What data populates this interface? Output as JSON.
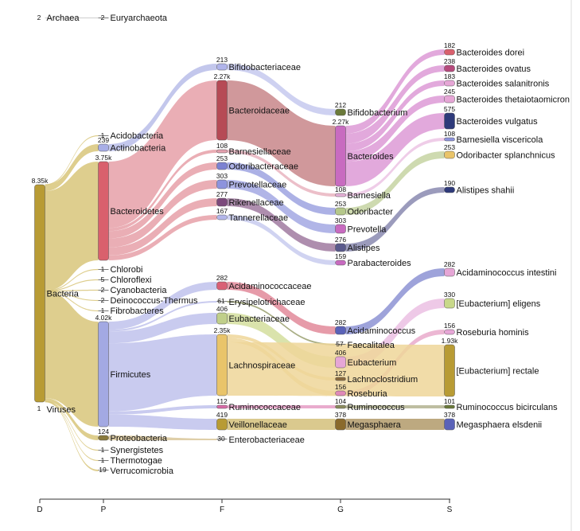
{
  "chart_data": {
    "type": "sankey",
    "levels": [
      "D",
      "P",
      "F",
      "G",
      "S"
    ],
    "nodes": [
      {
        "id": "archaea",
        "name": "Archaea",
        "count": "2",
        "level": 0,
        "color": "#aaaaaa"
      },
      {
        "id": "bacteria",
        "name": "Bacteria",
        "count": "8.35k",
        "level": 0,
        "color": "#b89b34"
      },
      {
        "id": "viruses",
        "name": "Viruses",
        "count": "1",
        "level": 0,
        "color": "#b89b34"
      },
      {
        "id": "euryarchaeota",
        "name": "Euryarchaeota",
        "count": "2",
        "level": 1,
        "color": "#aaaaaa"
      },
      {
        "id": "acidobacteria",
        "name": "Acidobacteria",
        "count": "1",
        "level": 1,
        "color": "#b89b34"
      },
      {
        "id": "actinobacteria",
        "name": "Actinobacteria",
        "count": "239",
        "level": 1,
        "color": "#a8aee6"
      },
      {
        "id": "bacteroidetes",
        "name": "Bacteroidetes",
        "count": "3.75k",
        "level": 1,
        "color": "#d9606d"
      },
      {
        "id": "chlorobi",
        "name": "Chlorobi",
        "count": "1",
        "level": 1,
        "color": "#b89b34"
      },
      {
        "id": "chloroflexi",
        "name": "Chloroflexi",
        "count": "5",
        "level": 1,
        "color": "#b89b34"
      },
      {
        "id": "cyanobacteria",
        "name": "Cyanobacteria",
        "count": "2",
        "level": 1,
        "color": "#b89b34"
      },
      {
        "id": "deinococcus",
        "name": "Deinococcus-Thermus",
        "count": "2",
        "level": 1,
        "color": "#b89b34"
      },
      {
        "id": "fibrobacteres",
        "name": "Fibrobacteres",
        "count": "1",
        "level": 1,
        "color": "#b89b34"
      },
      {
        "id": "firmicutes",
        "name": "Firmicutes",
        "count": "4.02k",
        "level": 1,
        "color": "#a3a9e3"
      },
      {
        "id": "proteobacteria",
        "name": "Proteobacteria",
        "count": "124",
        "level": 1,
        "color": "#8a7a3c"
      },
      {
        "id": "synergistetes",
        "name": "Synergistetes",
        "count": "1",
        "level": 1,
        "color": "#b89b34"
      },
      {
        "id": "thermotogae",
        "name": "Thermotogae",
        "count": "1",
        "level": 1,
        "color": "#b89b34"
      },
      {
        "id": "verrucomicrobia",
        "name": "Verrucomicrobia",
        "count": "19",
        "level": 1,
        "color": "#b89b34"
      },
      {
        "id": "bifidobacteriaceae",
        "name": "Bifidobacteriaceae",
        "count": "213",
        "level": 2,
        "color": "#b0b4ea"
      },
      {
        "id": "bacteroidaceae",
        "name": "Bacteroidaceae",
        "count": "2.27k",
        "level": 2,
        "color": "#b64a55"
      },
      {
        "id": "barnesiellaceae",
        "name": "Barnesiellaceae",
        "count": "108",
        "level": 2,
        "color": "#e4a0ae"
      },
      {
        "id": "odoribacteraceae",
        "name": "Odoribacteraceae",
        "count": "253",
        "level": 2,
        "color": "#7c82d2"
      },
      {
        "id": "prevotellaceae",
        "name": "Prevotellaceae",
        "count": "303",
        "level": 2,
        "color": "#8d93dd"
      },
      {
        "id": "rikenellaceae",
        "name": "Rikenellaceae",
        "count": "277",
        "level": 2,
        "color": "#7c4a7c"
      },
      {
        "id": "tannerellaceae",
        "name": "Tannerellaceae",
        "count": "167",
        "level": 2,
        "color": "#b3b6ea"
      },
      {
        "id": "acidaminococcaceae",
        "name": "Acidaminococcaceae",
        "count": "282",
        "level": 2,
        "color": "#d96075"
      },
      {
        "id": "erysipelotrichaceae",
        "name": "Erysipelotrichaceae",
        "count": "61",
        "level": 2,
        "color": "#6f7a3c"
      },
      {
        "id": "eubacteriaceae",
        "name": "Eubacteriaceae",
        "count": "406",
        "level": 2,
        "color": "#c0cf8a"
      },
      {
        "id": "lachnospiraceae",
        "name": "Lachnospiraceae",
        "count": "2.35k",
        "level": 2,
        "color": "#e9c46a"
      },
      {
        "id": "ruminococcaceae",
        "name": "Ruminococcaceae",
        "count": "112",
        "level": 2,
        "color": "#d96aa8"
      },
      {
        "id": "veillonellaceae",
        "name": "Veillonellaceae",
        "count": "419",
        "level": 2,
        "color": "#b89b34"
      },
      {
        "id": "enterobacteriaceae",
        "name": "Enterobacteriaceae",
        "count": "30",
        "level": 2,
        "color": "#e4a0ae"
      },
      {
        "id": "bifidobacterium",
        "name": "Bifidobacterium",
        "count": "212",
        "level": 3,
        "color": "#6b7a3a"
      },
      {
        "id": "bacteroides",
        "name": "Bacteroides",
        "count": "2.27k",
        "level": 3,
        "color": "#c86bc0"
      },
      {
        "id": "barnesiella",
        "name": "Barnesiella",
        "count": "108",
        "level": 3,
        "color": "#e6b0d8"
      },
      {
        "id": "odoribacter",
        "name": "Odoribacter",
        "count": "253",
        "level": 3,
        "color": "#b5c88a"
      },
      {
        "id": "prevotella",
        "name": "Prevotella",
        "count": "303",
        "level": 3,
        "color": "#c86bc0"
      },
      {
        "id": "alistipes",
        "name": "Alistipes",
        "count": "276",
        "level": 3,
        "color": "#5a5a8c"
      },
      {
        "id": "parabacteroides",
        "name": "Parabacteroides",
        "count": "159",
        "level": 3,
        "color": "#c86bc0"
      },
      {
        "id": "acidaminococcus",
        "name": "Acidaminococcus",
        "count": "282",
        "level": 3,
        "color": "#5a62b8"
      },
      {
        "id": "faecalitalea",
        "name": "Faecalitalea",
        "count": "57",
        "level": 3,
        "color": "#8a7a3c"
      },
      {
        "id": "eubacterium",
        "name": "Eubacterium",
        "count": "406",
        "level": 3,
        "color": "#e6a6d6"
      },
      {
        "id": "lachnoclostridium",
        "name": "Lachnoclostridium",
        "count": "127",
        "level": 3,
        "color": "#8a6a3c"
      },
      {
        "id": "roseburia",
        "name": "Roseburia",
        "count": "156",
        "level": 3,
        "color": "#e08ab8"
      },
      {
        "id": "ruminococcus",
        "name": "Ruminococcus",
        "count": "104",
        "level": 3,
        "color": "#8a8a5c"
      },
      {
        "id": "megasphaera",
        "name": "Megasphaera",
        "count": "378",
        "level": 3,
        "color": "#8a6a2c"
      },
      {
        "id": "b_dorei",
        "name": "Bacteroides dorei",
        "count": "182",
        "level": 4,
        "color": "#d9606d"
      },
      {
        "id": "b_ovatus",
        "name": "Bacteroides ovatus",
        "count": "238",
        "level": 4,
        "color": "#b64a7c"
      },
      {
        "id": "b_salanitronis",
        "name": "Bacteroides salanitronis",
        "count": "183",
        "level": 4,
        "color": "#e6a6d6"
      },
      {
        "id": "b_thetaiotaomicron",
        "name": "Bacteroides thetaiotaomicron",
        "count": "245",
        "level": 4,
        "color": "#e6a6d6"
      },
      {
        "id": "b_vulgatus",
        "name": "Bacteroides vulgatus",
        "count": "575",
        "level": 4,
        "color": "#2e3a7a"
      },
      {
        "id": "barn_viscericola",
        "name": "Barnesiella viscericola",
        "count": "108",
        "level": 4,
        "color": "#8d93dd"
      },
      {
        "id": "odo_splanchnicus",
        "name": "Odoribacter splanchnicus",
        "count": "253",
        "level": 4,
        "color": "#e9c46a"
      },
      {
        "id": "ali_shahii",
        "name": "Alistipes shahii",
        "count": "190",
        "level": 4,
        "color": "#2e3a7a"
      },
      {
        "id": "acid_intestini",
        "name": "Acidaminococcus intestini",
        "count": "282",
        "level": 4,
        "color": "#e6a6d6"
      },
      {
        "id": "eub_eligens",
        "name": "[Eubacterium] eligens",
        "count": "330",
        "level": 4,
        "color": "#c8d88a"
      },
      {
        "id": "ros_hominis",
        "name": "Roseburia hominis",
        "count": "156",
        "level": 4,
        "color": "#e6a6d6"
      },
      {
        "id": "eub_rectale",
        "name": "[Eubacterium] rectale",
        "count": "1.93k",
        "level": 4,
        "color": "#b89b34"
      },
      {
        "id": "rum_bicirculans",
        "name": "Ruminococcus bicirculans",
        "count": "101",
        "level": 4,
        "color": "#6b7a3a"
      },
      {
        "id": "meg_elsdenii",
        "name": "Megasphaera elsdenii",
        "count": "378",
        "level": 4,
        "color": "#5a62b8"
      }
    ],
    "links": [
      {
        "source": "archaea",
        "target": "euryarchaeota",
        "value": 2
      },
      {
        "source": "bacteria",
        "target": "acidobacteria",
        "value": 1
      },
      {
        "source": "bacteria",
        "target": "actinobacteria",
        "value": 239
      },
      {
        "source": "bacteria",
        "target": "bacteroidetes",
        "value": 3750
      },
      {
        "source": "bacteria",
        "target": "chlorobi",
        "value": 1
      },
      {
        "source": "bacteria",
        "target": "chloroflexi",
        "value": 5
      },
      {
        "source": "bacteria",
        "target": "cyanobacteria",
        "value": 2
      },
      {
        "source": "bacteria",
        "target": "deinococcus",
        "value": 2
      },
      {
        "source": "bacteria",
        "target": "fibrobacteres",
        "value": 1
      },
      {
        "source": "bacteria",
        "target": "firmicutes",
        "value": 4020
      },
      {
        "source": "bacteria",
        "target": "proteobacteria",
        "value": 124
      },
      {
        "source": "bacteria",
        "target": "synergistetes",
        "value": 1
      },
      {
        "source": "bacteria",
        "target": "thermotogae",
        "value": 1
      },
      {
        "source": "bacteria",
        "target": "verrucomicrobia",
        "value": 19
      },
      {
        "source": "actinobacteria",
        "target": "bifidobacteriaceae",
        "value": 213
      },
      {
        "source": "bacteroidetes",
        "target": "bacteroidaceae",
        "value": 2270
      },
      {
        "source": "bacteroidetes",
        "target": "barnesiellaceae",
        "value": 108
      },
      {
        "source": "bacteroidetes",
        "target": "odoribacteraceae",
        "value": 253
      },
      {
        "source": "bacteroidetes",
        "target": "prevotellaceae",
        "value": 303
      },
      {
        "source": "bacteroidetes",
        "target": "rikenellaceae",
        "value": 277
      },
      {
        "source": "bacteroidetes",
        "target": "tannerellaceae",
        "value": 167
      },
      {
        "source": "firmicutes",
        "target": "acidaminococcaceae",
        "value": 282
      },
      {
        "source": "firmicutes",
        "target": "erysipelotrichaceae",
        "value": 61
      },
      {
        "source": "firmicutes",
        "target": "eubacteriaceae",
        "value": 406
      },
      {
        "source": "firmicutes",
        "target": "lachnospiraceae",
        "value": 2350
      },
      {
        "source": "firmicutes",
        "target": "ruminococcaceae",
        "value": 112
      },
      {
        "source": "firmicutes",
        "target": "veillonellaceae",
        "value": 419
      },
      {
        "source": "proteobacteria",
        "target": "enterobacteriaceae",
        "value": 30
      },
      {
        "source": "bifidobacteriaceae",
        "target": "bifidobacterium",
        "value": 212
      },
      {
        "source": "bacteroidaceae",
        "target": "bacteroides",
        "value": 2270
      },
      {
        "source": "barnesiellaceae",
        "target": "barnesiella",
        "value": 108
      },
      {
        "source": "odoribacteraceae",
        "target": "odoribacter",
        "value": 253
      },
      {
        "source": "prevotellaceae",
        "target": "prevotella",
        "value": 303
      },
      {
        "source": "rikenellaceae",
        "target": "alistipes",
        "value": 276
      },
      {
        "source": "tannerellaceae",
        "target": "parabacteroides",
        "value": 159
      },
      {
        "source": "acidaminococcaceae",
        "target": "acidaminococcus",
        "value": 282
      },
      {
        "source": "erysipelotrichaceae",
        "target": "faecalitalea",
        "value": 57
      },
      {
        "source": "eubacteriaceae",
        "target": "eubacterium",
        "value": 406
      },
      {
        "source": "lachnospiraceae",
        "target": "lachnoclostridium",
        "value": 127
      },
      {
        "source": "lachnospiraceae",
        "target": "roseburia",
        "value": 156
      },
      {
        "source": "ruminococcaceae",
        "target": "ruminococcus",
        "value": 104
      },
      {
        "source": "veillonellaceae",
        "target": "megasphaera",
        "value": 378
      },
      {
        "source": "bacteroides",
        "target": "b_dorei",
        "value": 182
      },
      {
        "source": "bacteroides",
        "target": "b_ovatus",
        "value": 238
      },
      {
        "source": "bacteroides",
        "target": "b_salanitronis",
        "value": 183
      },
      {
        "source": "bacteroides",
        "target": "b_thetaiotaomicron",
        "value": 245
      },
      {
        "source": "bacteroides",
        "target": "b_vulgatus",
        "value": 575
      },
      {
        "source": "barnesiella",
        "target": "barn_viscericola",
        "value": 108
      },
      {
        "source": "odoribacter",
        "target": "odo_splanchnicus",
        "value": 253
      },
      {
        "source": "alistipes",
        "target": "ali_shahii",
        "value": 190
      },
      {
        "source": "acidaminococcus",
        "target": "acid_intestini",
        "value": 282
      },
      {
        "source": "eubacterium",
        "target": "eub_eligens",
        "value": 330
      },
      {
        "source": "roseburia",
        "target": "ros_hominis",
        "value": 156
      },
      {
        "source": "lachnospiraceae",
        "target": "eub_rectale",
        "value": 1930
      },
      {
        "source": "ruminococcus",
        "target": "rum_bicirculans",
        "value": 101
      },
      {
        "source": "megasphaera",
        "target": "meg_elsdenii",
        "value": 378
      }
    ]
  }
}
